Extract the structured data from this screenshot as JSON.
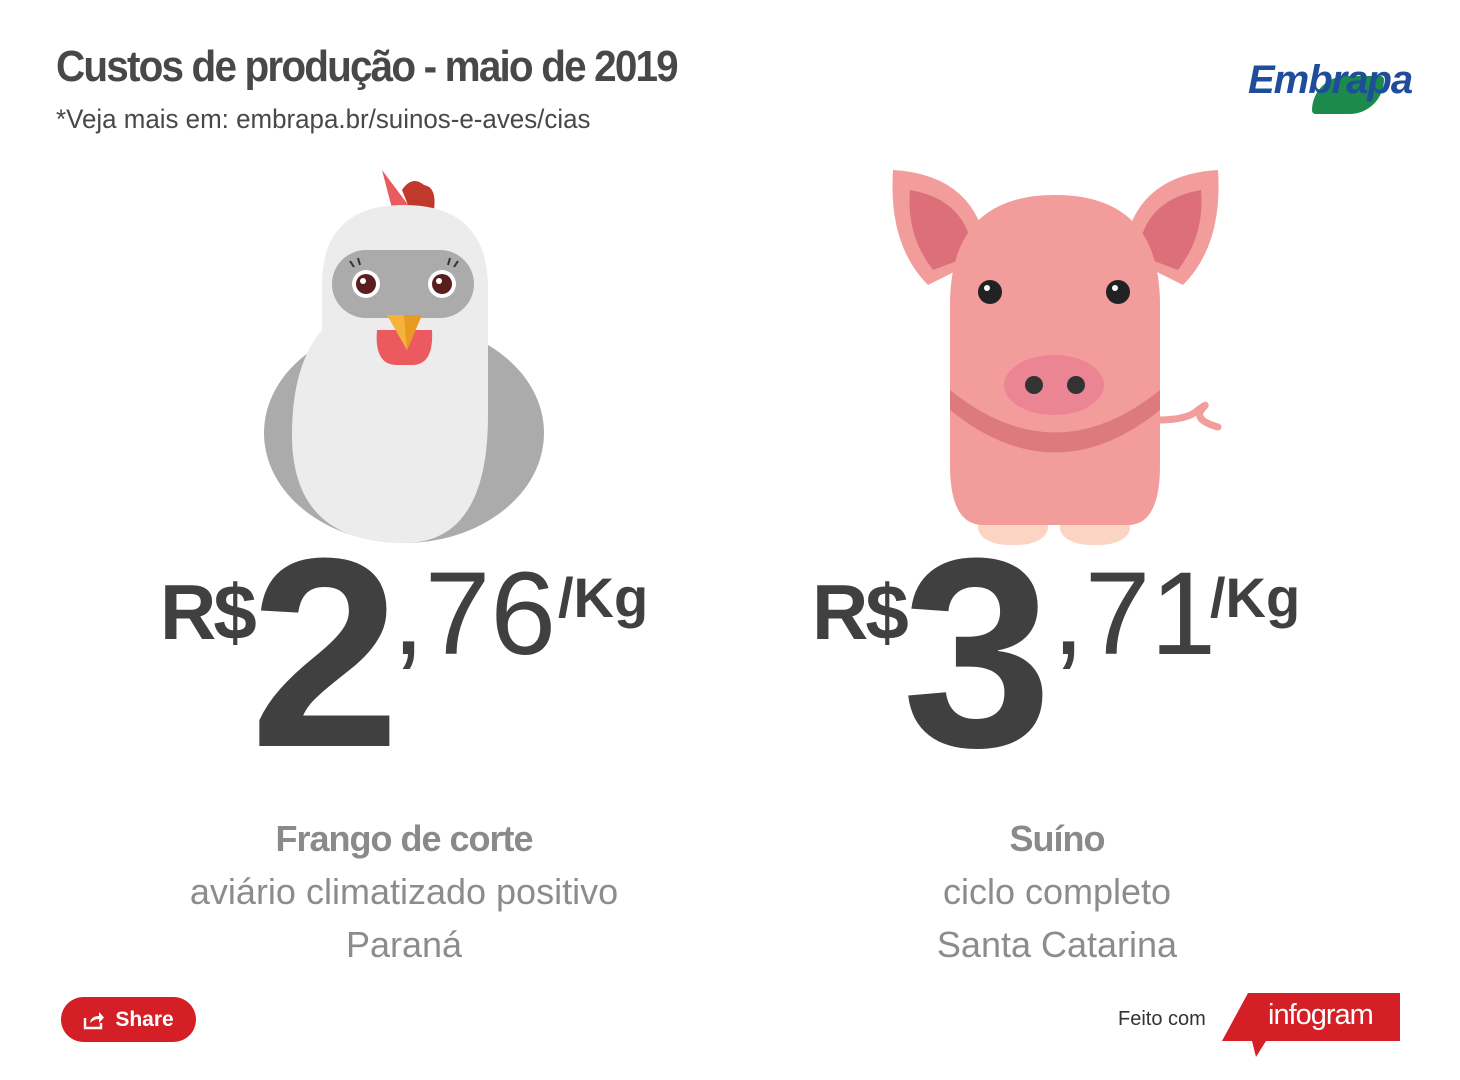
{
  "header": {
    "title": "Custos de produção - maio de 2019",
    "subtitle": "*Veja mais em: embrapa.br/suinos-e-aves/cias",
    "logo_text": "Embrapa"
  },
  "items": [
    {
      "animal_icon": "chicken-icon",
      "currency": "R$",
      "integer": "2",
      "decimal": ",76",
      "unit": "/Kg",
      "title": "Frango de corte",
      "line1": "aviário climatizado positivo",
      "line2": "Paraná"
    },
    {
      "animal_icon": "pig-icon",
      "currency": "R$",
      "integer": "3",
      "decimal": ",71",
      "unit": "/Kg",
      "title": "Suíno",
      "line1": "ciclo completo",
      "line2": "Santa Catarina"
    }
  ],
  "footer": {
    "share_label": "Share",
    "made_with": "Feito com",
    "brand": "infogram"
  },
  "colors": {
    "text_dark": "#404040",
    "text_gray": "#8c8c8c",
    "share_red": "#d41f26",
    "embrapa_blue": "#1f4d9b",
    "embrapa_green": "#1b8a4a",
    "pig_pink": "#f29c9c",
    "chicken_white": "#ededed"
  }
}
